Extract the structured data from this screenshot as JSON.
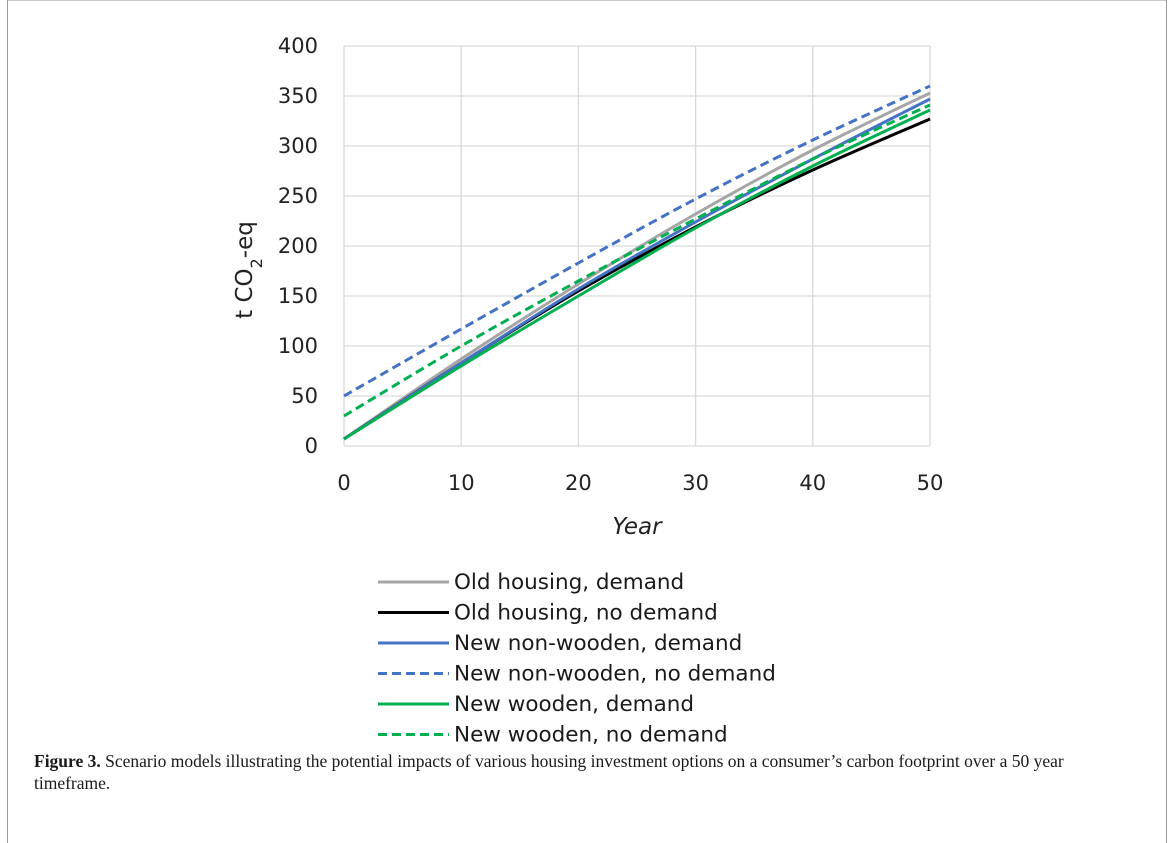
{
  "chart_data": {
    "type": "line",
    "title": "",
    "xlabel": "Year",
    "ylabel": "t CO",
    "ylabel_sub": "2",
    "ylabel_suffix": "-eq",
    "xlim": [
      0,
      50
    ],
    "ylim": [
      0,
      400
    ],
    "xticks": [
      0,
      10,
      20,
      30,
      40,
      50
    ],
    "yticks": [
      0,
      50,
      100,
      150,
      200,
      250,
      300,
      350,
      400
    ],
    "grid": true,
    "legend_position": "below",
    "series": [
      {
        "name": "Old housing, demand",
        "color": "#a6a6a6",
        "dash": "solid",
        "x": [
          0,
          10,
          20,
          30,
          40,
          50
        ],
        "y": [
          7,
          87,
          162,
          232,
          296,
          353
        ]
      },
      {
        "name": "Old housing, no demand",
        "color": "#000000",
        "dash": "solid",
        "x": [
          0,
          10,
          20,
          30,
          40,
          50
        ],
        "y": [
          7,
          83,
          155,
          219,
          276,
          327
        ]
      },
      {
        "name": "New non-wooden, demand",
        "color": "#4472c4",
        "dash": "solid",
        "x": [
          0,
          10,
          20,
          30,
          40,
          50
        ],
        "y": [
          7,
          83,
          157,
          224,
          287,
          347
        ]
      },
      {
        "name": "New non-wooden, no demand",
        "color": "#4472c4",
        "dash": "dashed",
        "x": [
          0,
          10,
          20,
          30,
          40,
          50
        ],
        "y": [
          50,
          117,
          183,
          247,
          306,
          360
        ]
      },
      {
        "name": "New wooden, demand",
        "color": "#00b050",
        "dash": "solid",
        "x": [
          0,
          10,
          20,
          30,
          40,
          50
        ],
        "y": [
          7,
          80,
          150,
          218,
          280,
          336
        ]
      },
      {
        "name": "New wooden, no demand",
        "color": "#00b050",
        "dash": "dashed",
        "x": [
          0,
          10,
          20,
          30,
          40,
          50
        ],
        "y": [
          30,
          100,
          165,
          227,
          287,
          341
        ]
      }
    ]
  },
  "caption": {
    "label": "Figure 3.",
    "text": " Scenario models illustrating the potential impacts of various housing investment options on a consumer’s carbon footprint over a 50 year timeframe."
  }
}
